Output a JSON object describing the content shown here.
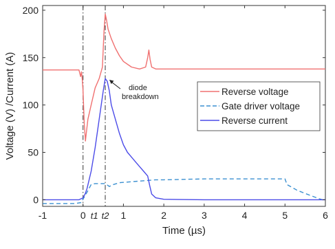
{
  "chart_data": {
    "type": "line",
    "xlabel": "Time (µs)",
    "ylabel": "Voltage (V) /Current (A)",
    "xlim": [
      -1,
      6
    ],
    "ylim": [
      -7,
      205
    ],
    "x_ticks": [
      -1,
      0,
      1,
      2,
      3,
      4,
      5,
      6
    ],
    "x_tick_labels": [
      "-1",
      "0",
      "1",
      "2",
      "3",
      "4",
      "5",
      "6"
    ],
    "y_ticks": [
      0,
      50,
      100,
      150,
      200
    ],
    "y_tick_labels": [
      "0",
      "50",
      "100",
      "150",
      "200"
    ],
    "grid": false,
    "legend_position": "center-right",
    "vertical_markers": [
      {
        "x": 0.0,
        "label": "0",
        "style": "dash-dot"
      },
      {
        "x": 0.28,
        "label": "t1",
        "style": "none"
      },
      {
        "x": 0.55,
        "label": "t2",
        "style": "dash-dot"
      }
    ],
    "annotation": {
      "text_line1": "diode",
      "text_line2": "breakdown",
      "points_to": {
        "x": 0.6,
        "y": 128
      }
    },
    "series": [
      {
        "name": "Reverse voltage",
        "color": "#f07070",
        "style": "solid",
        "x": [
          -1,
          -0.5,
          -0.1,
          -0.06,
          -0.04,
          -0.02,
          0.0,
          0.03,
          0.06,
          0.08,
          0.12,
          0.2,
          0.3,
          0.4,
          0.48,
          0.52,
          0.55,
          0.58,
          0.62,
          0.7,
          0.8,
          0.9,
          1.0,
          1.2,
          1.4,
          1.55,
          1.6,
          1.63,
          1.66,
          1.7,
          1.8,
          2.0,
          3.0,
          4.0,
          5.0,
          6.0
        ],
        "y": [
          137,
          137,
          137,
          130,
          135,
          128,
          115,
          80,
          62,
          70,
          85,
          100,
          118,
          128,
          140,
          178,
          196,
          190,
          180,
          170,
          160,
          152,
          146,
          140,
          138,
          140,
          150,
          158,
          148,
          140,
          138,
          138,
          138,
          138,
          138,
          138
        ]
      },
      {
        "name": "Gate driver voltage",
        "color": "#3a8fd0",
        "style": "dashed",
        "x": [
          -1,
          -0.2,
          -0.05,
          0.1,
          0.2,
          0.3,
          0.4,
          0.55,
          0.65,
          0.75,
          0.9,
          1.2,
          1.5,
          1.8,
          2.0,
          3.0,
          4.0,
          4.98,
          5.0,
          5.05,
          5.3,
          5.6,
          5.85,
          6.0
        ],
        "y": [
          -4,
          -4,
          -3,
          8,
          16,
          17,
          17,
          17,
          14,
          16,
          18,
          19,
          20,
          21,
          21,
          22,
          22,
          22,
          22,
          16,
          10,
          5,
          1,
          -1
        ]
      },
      {
        "name": "Reverse current",
        "color": "#4b4be8",
        "style": "solid",
        "x": [
          -1,
          -0.1,
          0.0,
          0.05,
          0.1,
          0.2,
          0.3,
          0.4,
          0.5,
          0.55,
          0.6,
          0.65,
          0.7,
          0.8,
          0.9,
          1.0,
          1.1,
          1.2,
          1.3,
          1.4,
          1.5,
          1.6,
          1.65,
          1.7,
          1.8,
          2.0,
          3.0,
          6.0
        ],
        "y": [
          0,
          0,
          2,
          6,
          12,
          30,
          55,
          85,
          115,
          128,
          125,
          115,
          100,
          85,
          70,
          58,
          50,
          45,
          40,
          35,
          30,
          25,
          15,
          6,
          2,
          0.5,
          0,
          0
        ]
      }
    ]
  }
}
